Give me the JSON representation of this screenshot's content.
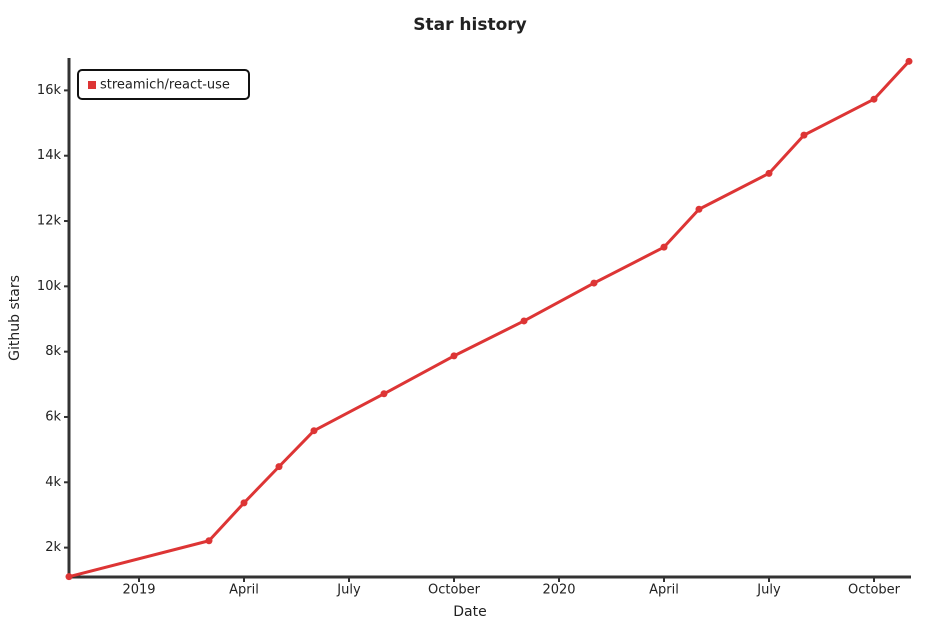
{
  "chart_data": {
    "type": "line",
    "title": "Star history",
    "x_label": "Date",
    "y_label": "Github stars",
    "x": [
      "2018-11",
      "2019-03",
      "2019-04",
      "2019-05",
      "2019-06",
      "2019-08",
      "2019-10",
      "2019-12",
      "2020-02",
      "2020-04",
      "2020-05",
      "2020-07",
      "2020-08",
      "2020-10",
      "2020-11"
    ],
    "series": [
      {
        "name": "streamich/react-use",
        "color": "#dd3535",
        "values": [
          1110,
          2210,
          3370,
          4480,
          5580,
          6710,
          7870,
          8940,
          10100,
          11200,
          12360,
          13460,
          14630,
          15730,
          16890
        ]
      }
    ],
    "xlim": [
      "2018-11",
      "2020-11"
    ],
    "xticks": [
      {
        "value": "2019-01",
        "label": "2019"
      },
      {
        "value": "2019-04",
        "label": "April"
      },
      {
        "value": "2019-07",
        "label": "July"
      },
      {
        "value": "2019-10",
        "label": "October"
      },
      {
        "value": "2020-01",
        "label": "2020"
      },
      {
        "value": "2020-04",
        "label": "April"
      },
      {
        "value": "2020-07",
        "label": "July"
      },
      {
        "value": "2020-10",
        "label": "October"
      }
    ],
    "ylim": [
      1100,
      16900
    ],
    "yticks": [
      {
        "value": 2000,
        "label": "2k"
      },
      {
        "value": 4000,
        "label": "4k"
      },
      {
        "value": 6000,
        "label": "6k"
      },
      {
        "value": 8000,
        "label": "8k"
      },
      {
        "value": 10000,
        "label": "10k"
      },
      {
        "value": 12000,
        "label": "12k"
      },
      {
        "value": 14000,
        "label": "14k"
      },
      {
        "value": 16000,
        "label": "16k"
      }
    ],
    "legend": "top-left"
  }
}
